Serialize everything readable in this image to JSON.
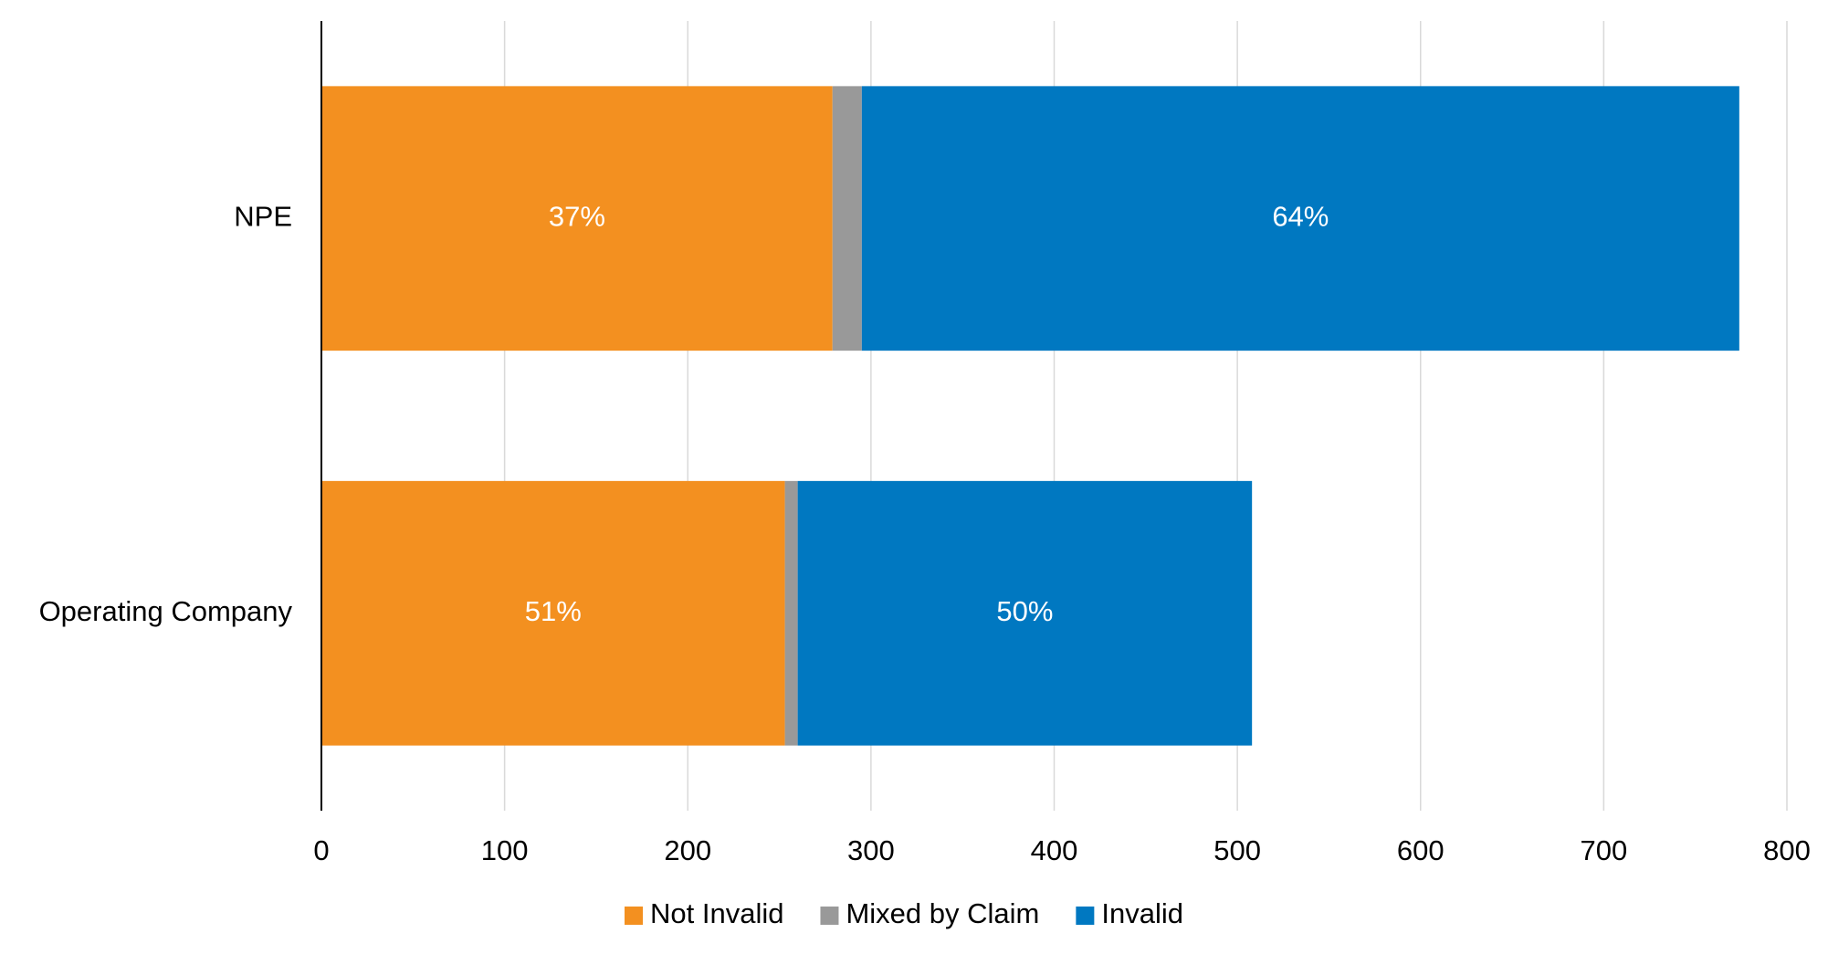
{
  "chart_data": {
    "type": "hbar_stacked",
    "categories": [
      "NPE",
      "Operating Company"
    ],
    "series": [
      {
        "name": "Not Invalid",
        "color": "#f39020",
        "values": [
          279,
          253
        ],
        "percent_labels": [
          "37%",
          "51%"
        ]
      },
      {
        "name": "Mixed by Claim",
        "color": "#999999",
        "values": [
          16,
          7
        ]
      },
      {
        "name": "Invalid",
        "color": "#0078c1",
        "values": [
          479,
          248
        ],
        "percent_labels": [
          "64%",
          "50%"
        ]
      }
    ],
    "xlim": [
      0,
      800
    ],
    "xticks": [
      0,
      100,
      200,
      300,
      400,
      500,
      600,
      700,
      800
    ],
    "grid": true,
    "legend": "bottom"
  }
}
